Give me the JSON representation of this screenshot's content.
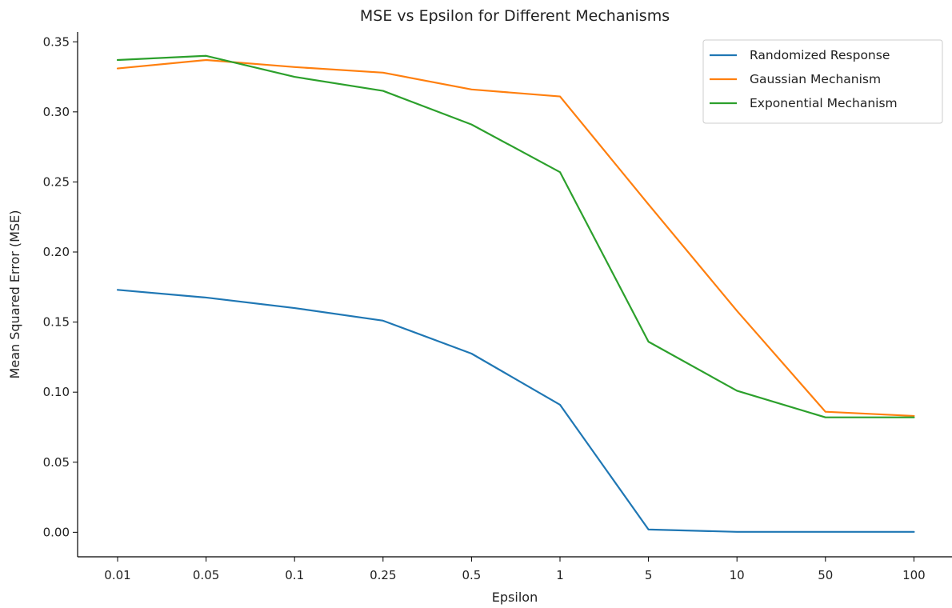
{
  "chart_data": {
    "type": "line",
    "title": "MSE vs Epsilon for Different Mechanisms",
    "xlabel": "Epsilon",
    "ylabel": "Mean Squared Error (MSE)",
    "categories": [
      "0.01",
      "0.05",
      "0.1",
      "0.25",
      "0.5",
      "1",
      "5",
      "10",
      "50",
      "100"
    ],
    "ylim": [
      -0.0175,
      0.357
    ],
    "yticks": [
      "0.00",
      "0.05",
      "0.10",
      "0.15",
      "0.20",
      "0.25",
      "0.30",
      "0.35"
    ],
    "grid": false,
    "legend_position": "top-right",
    "series": [
      {
        "name": "Randomized Response",
        "color": "#1f77b4",
        "values": [
          0.173,
          0.1675,
          0.16,
          0.151,
          0.1275,
          0.091,
          0.002,
          0.0003,
          0.0003,
          0.0003
        ]
      },
      {
        "name": "Gaussian Mechanism",
        "color": "#ff7f0e",
        "values": [
          0.331,
          0.337,
          0.332,
          0.328,
          0.316,
          0.311,
          0.234,
          0.158,
          0.086,
          0.083
        ]
      },
      {
        "name": "Exponential Mechanism",
        "color": "#2ca02c",
        "values": [
          0.337,
          0.34,
          0.325,
          0.315,
          0.291,
          0.257,
          0.136,
          0.101,
          0.082,
          0.082
        ]
      }
    ]
  }
}
